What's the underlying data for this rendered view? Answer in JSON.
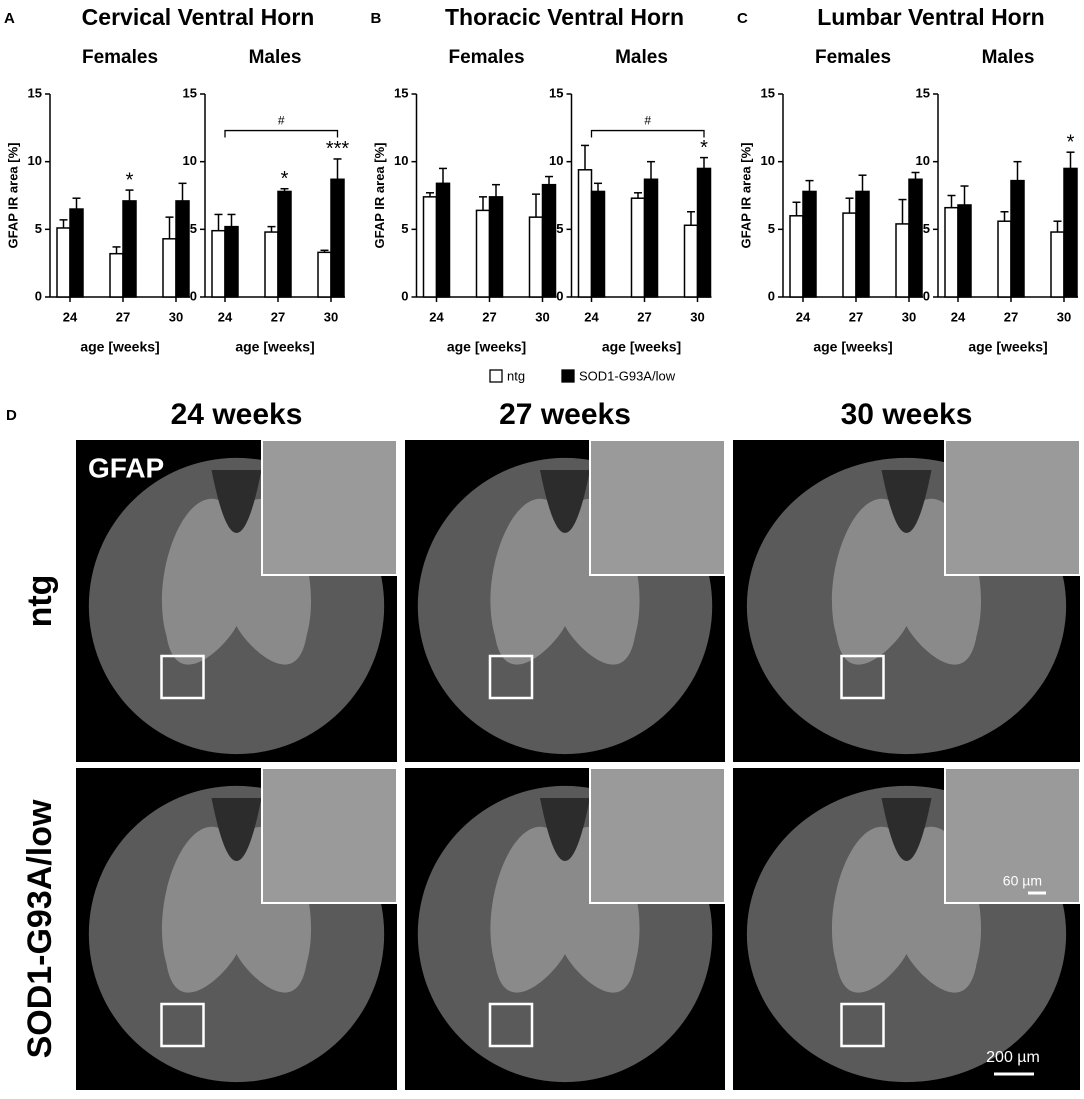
{
  "chart_data": [
    {
      "type": "bar",
      "title": "Females",
      "ylabel": "GFAP IR area [%]",
      "xlabel": "age [weeks]",
      "categories": [
        "24",
        "27",
        "30"
      ],
      "series": [
        {
          "values": [
            5.1,
            3.2,
            4.3
          ],
          "errors": [
            0.6,
            0.5,
            1.6
          ]
        },
        {
          "values": [
            6.5,
            7.1,
            7.1
          ],
          "errors": [
            0.8,
            0.8,
            1.3
          ],
          "significance": [
            null,
            "*",
            null
          ]
        }
      ],
      "ylim": [
        0,
        15
      ],
      "yticks": [
        0,
        5,
        10,
        15
      ]
    },
    {
      "type": "bar",
      "title": "Males",
      "xlabel": "age [weeks]",
      "categories": [
        "24",
        "27",
        "30"
      ],
      "series": [
        {
          "values": [
            4.9,
            4.8,
            3.3
          ],
          "errors": [
            1.2,
            0.4,
            0.15
          ]
        },
        {
          "values": [
            5.2,
            7.8,
            8.7
          ],
          "errors": [
            0.9,
            0.2,
            1.5
          ],
          "significance": [
            null,
            "*",
            "***"
          ]
        }
      ],
      "bracket": "#",
      "ylim": [
        0,
        15
      ],
      "yticks": [
        0,
        5,
        10,
        15
      ]
    },
    {
      "type": "bar",
      "title": "Females",
      "ylabel": "GFAP IR area [%]",
      "xlabel": "age [weeks]",
      "categories": [
        "24",
        "27",
        "30"
      ],
      "series": [
        {
          "values": [
            7.4,
            6.4,
            5.9
          ],
          "errors": [
            0.3,
            1.0,
            1.7
          ]
        },
        {
          "values": [
            8.4,
            7.4,
            8.3
          ],
          "errors": [
            1.1,
            0.9,
            0.6
          ]
        }
      ],
      "ylim": [
        0,
        15
      ],
      "yticks": [
        0,
        5,
        10,
        15
      ]
    },
    {
      "type": "bar",
      "title": "Males",
      "xlabel": "age [weeks]",
      "categories": [
        "24",
        "27",
        "30"
      ],
      "series": [
        {
          "values": [
            9.4,
            7.3,
            5.3
          ],
          "errors": [
            1.8,
            0.4,
            1.0
          ]
        },
        {
          "values": [
            7.8,
            8.7,
            9.5
          ],
          "errors": [
            0.6,
            1.3,
            0.8
          ],
          "significance": [
            null,
            null,
            "*"
          ]
        }
      ],
      "bracket": "#",
      "ylim": [
        0,
        15
      ],
      "yticks": [
        0,
        5,
        10,
        15
      ]
    },
    {
      "type": "bar",
      "title": "Females",
      "ylabel": "GFAP IR area [%]",
      "xlabel": "age [weeks]",
      "categories": [
        "24",
        "27",
        "30"
      ],
      "series": [
        {
          "values": [
            6.0,
            6.2,
            5.4
          ],
          "errors": [
            1.0,
            1.1,
            1.8
          ]
        },
        {
          "values": [
            7.8,
            7.8,
            8.7
          ],
          "errors": [
            0.8,
            1.2,
            0.5
          ]
        }
      ],
      "ylim": [
        0,
        15
      ],
      "yticks": [
        0,
        5,
        10,
        15
      ]
    },
    {
      "type": "bar",
      "title": "Males",
      "xlabel": "age [weeks]",
      "categories": [
        "24",
        "27",
        "30"
      ],
      "series": [
        {
          "values": [
            6.6,
            5.6,
            4.8
          ],
          "errors": [
            0.9,
            0.7,
            0.8
          ]
        },
        {
          "values": [
            6.8,
            8.6,
            9.5
          ],
          "errors": [
            1.4,
            1.4,
            1.2
          ],
          "significance": [
            null,
            null,
            "*"
          ]
        }
      ],
      "ylim": [
        0,
        15
      ],
      "yticks": [
        0,
        5,
        10,
        15
      ]
    }
  ],
  "panels": [
    {
      "letter": "A",
      "title": "Cervical Ventral Horn"
    },
    {
      "letter": "B",
      "title": "Thoracic Ventral Horn"
    },
    {
      "letter": "C",
      "title": "Lumbar Ventral Horn"
    }
  ],
  "legend": [
    {
      "name": "ntg",
      "color": "#ffffff"
    },
    {
      "name": "SOD1-G93A/low",
      "color": "#000000"
    }
  ],
  "micrographs": {
    "letter": "D",
    "columns": [
      "24 weeks",
      "27 weeks",
      "30 weeks"
    ],
    "rows": [
      "ntg",
      "SOD1-G93A/low"
    ],
    "stain": "GFAP",
    "inset_scale": "60 µm",
    "scale": "200 µm"
  }
}
